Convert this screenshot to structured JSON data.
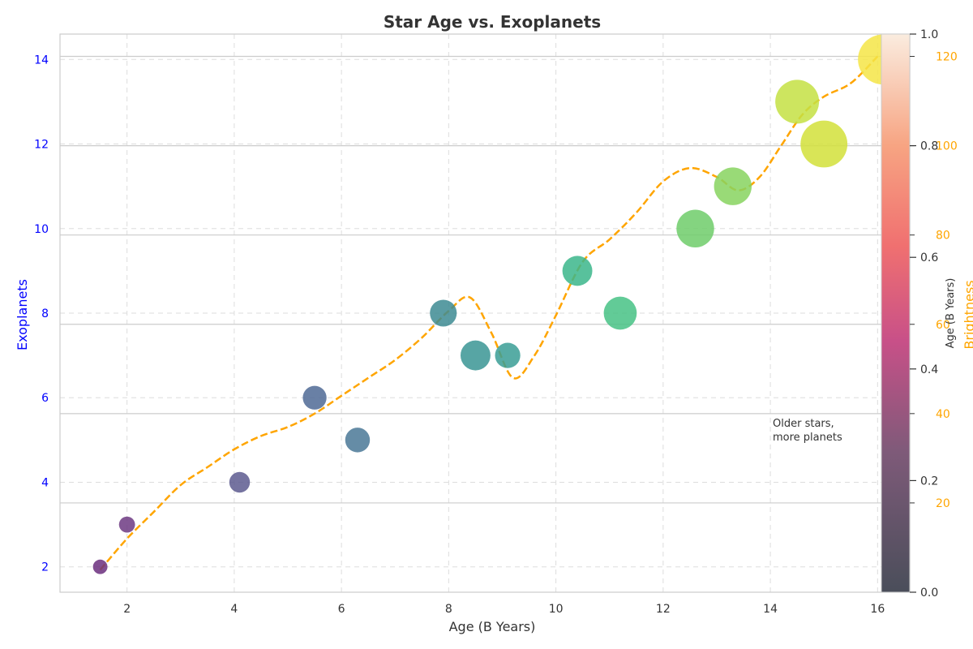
{
  "chart_data": {
    "type": "scatter",
    "title": "Star Age vs. Exoplanets",
    "xlabel": "Age (B Years)",
    "ylabel_left": "Exoplanets",
    "ylabel_right": "Brightness",
    "colorbar_label": "Age (B Years)",
    "annotation": [
      "Older stars,",
      "more planets"
    ],
    "xlim": [
      0.75,
      16.6
    ],
    "ylim_left": [
      1.4,
      14.6
    ],
    "ylim_right": [
      0,
      125
    ],
    "colorbar_range": [
      0,
      1
    ],
    "x_ticks": [
      2,
      4,
      6,
      8,
      10,
      12,
      14,
      16
    ],
    "y_left_ticks": [
      2,
      4,
      6,
      8,
      10,
      12,
      14
    ],
    "y_right_ticks": [
      20,
      40,
      60,
      80,
      100,
      120
    ],
    "colorbar_ticks": [
      0.0,
      0.2,
      0.4,
      0.6,
      0.8,
      1.0
    ],
    "grid": true,
    "colors": {
      "left_axis": "#0000ff",
      "right_axis": "#ffa500",
      "trend_line": "#ffa500",
      "grid": "#dddddd",
      "spine": "#cccccc",
      "text": "#333333"
    },
    "series": [
      {
        "name": "Exoplanets",
        "points": [
          {
            "x": 1.5,
            "y": 2,
            "brightness": 5,
            "color": "#6b2f7e"
          },
          {
            "x": 2.0,
            "y": 3,
            "brightness": 10,
            "color": "#6d3a82"
          },
          {
            "x": 4.1,
            "y": 4,
            "brightness": 25,
            "color": "#5d5a8f"
          },
          {
            "x": 5.5,
            "y": 6,
            "brightness": 35,
            "color": "#4f6a95"
          },
          {
            "x": 6.3,
            "y": 5,
            "brightness": 38,
            "color": "#4a7896"
          },
          {
            "x": 7.9,
            "y": 8,
            "brightness": 45,
            "color": "#3d8b93"
          },
          {
            "x": 8.5,
            "y": 7,
            "brightness": 55,
            "color": "#3a9594"
          },
          {
            "x": 9.1,
            "y": 7,
            "brightness": 40,
            "color": "#399e95"
          },
          {
            "x": 10.4,
            "y": 9,
            "brightness": 55,
            "color": "#3bb68b"
          },
          {
            "x": 11.2,
            "y": 8,
            "brightness": 65,
            "color": "#47c285"
          },
          {
            "x": 12.6,
            "y": 10,
            "brightness": 80,
            "color": "#6ecc6a"
          },
          {
            "x": 13.3,
            "y": 11,
            "brightness": 80,
            "color": "#87d35f"
          },
          {
            "x": 14.5,
            "y": 13,
            "brightness": 100,
            "color": "#c4e043"
          },
          {
            "x": 15.0,
            "y": 12,
            "brightness": 110,
            "color": "#d2e03a"
          },
          {
            "x": 16.1,
            "y": 14,
            "brightness": 120,
            "color": "#f4e547"
          }
        ]
      },
      {
        "name": "Brightness trend",
        "points": [
          [
            1.5,
            5
          ],
          [
            2.0,
            12
          ],
          [
            2.5,
            18
          ],
          [
            3.0,
            24
          ],
          [
            3.5,
            28
          ],
          [
            4.0,
            32
          ],
          [
            4.5,
            35
          ],
          [
            5.0,
            37
          ],
          [
            5.5,
            40
          ],
          [
            6.0,
            44
          ],
          [
            6.5,
            48
          ],
          [
            7.0,
            52
          ],
          [
            7.5,
            57
          ],
          [
            8.0,
            63
          ],
          [
            8.4,
            66
          ],
          [
            8.8,
            58
          ],
          [
            9.2,
            48
          ],
          [
            9.6,
            53
          ],
          [
            10.0,
            62
          ],
          [
            10.5,
            74
          ],
          [
            11.0,
            79
          ],
          [
            11.5,
            85
          ],
          [
            12.0,
            92
          ],
          [
            12.5,
            95
          ],
          [
            13.0,
            93
          ],
          [
            13.4,
            90
          ],
          [
            13.8,
            93
          ],
          [
            14.2,
            100
          ],
          [
            14.6,
            107
          ],
          [
            15.0,
            111
          ],
          [
            15.5,
            114
          ],
          [
            16.0,
            120
          ]
        ]
      }
    ]
  }
}
